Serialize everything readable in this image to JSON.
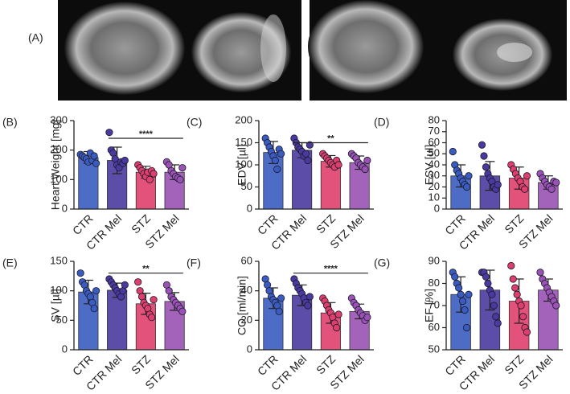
{
  "panel_a_label": "(A)",
  "chart_data": [
    {
      "type": "bar",
      "panel": "(B)",
      "y_label": "Heart Weight [mg]",
      "categories": [
        "CTR",
        "CTR Mel",
        "STZ",
        "STZ Mel"
      ],
      "colors": [
        "#3a5cc0",
        "#4a3aa0",
        "#df3f6c",
        "#9a52b4"
      ],
      "values": [
        175,
        165,
        125,
        125
      ],
      "errors": [
        20,
        45,
        20,
        25
      ],
      "points": [
        [
          185,
          180,
          175,
          170,
          160,
          190,
          165,
          180,
          155
        ],
        [
          260,
          200,
          190,
          170,
          150,
          140,
          160,
          155,
          165
        ],
        [
          150,
          140,
          130,
          120,
          110,
          125,
          100,
          130,
          120
        ],
        [
          160,
          150,
          130,
          120,
          110,
          105,
          100,
          140
        ]
      ],
      "ylim": [
        0,
        300
      ],
      "yticks": [
        0,
        100,
        200,
        300
      ],
      "significance": {
        "label": "****",
        "y": 240,
        "from": "CTR Mel",
        "to": "STZ Mel"
      }
    },
    {
      "type": "bar",
      "panel": "(C)",
      "y_label": "EDV [µl]",
      "categories": [
        "CTR",
        "CTR Mel",
        "STZ",
        "STZ Mel"
      ],
      "colors": [
        "#3a5cc0",
        "#4a3aa0",
        "#df3f6c",
        "#9a52b4"
      ],
      "values": [
        128,
        133,
        108,
        105
      ],
      "errors": [
        25,
        17,
        13,
        15
      ],
      "points": [
        [
          160,
          150,
          140,
          130,
          120,
          110,
          90,
          135,
          125
        ],
        [
          160,
          150,
          140,
          135,
          130,
          120,
          125,
          110,
          145
        ],
        [
          125,
          120,
          115,
          110,
          105,
          100,
          95,
          110,
          100
        ],
        [
          125,
          120,
          115,
          105,
          100,
          95,
          90,
          110
        ]
      ],
      "ylim": [
        0,
        200
      ],
      "yticks": [
        0,
        50,
        100,
        150,
        200
      ],
      "significance": {
        "label": "**",
        "y": 150,
        "from": "CTR Mel",
        "to": "STZ Mel"
      }
    },
    {
      "type": "bar",
      "panel": "(D)",
      "y_label": "ESV [ul]",
      "categories": [
        "CTR",
        "CTR Mel",
        "STZ",
        "STZ Mel"
      ],
      "colors": [
        "#3a5cc0",
        "#4a3aa0",
        "#df3f6c",
        "#9a52b4"
      ],
      "values": [
        30,
        30,
        28,
        24
      ],
      "errors": [
        10,
        13,
        10,
        6
      ],
      "points": [
        [
          52,
          40,
          35,
          32,
          28,
          25,
          22,
          20,
          30
        ],
        [
          58,
          48,
          38,
          32,
          28,
          25,
          20,
          18,
          22
        ],
        [
          40,
          36,
          32,
          28,
          25,
          20,
          18,
          30
        ],
        [
          32,
          28,
          25,
          22,
          20,
          18,
          25,
          24
        ]
      ],
      "ylim": [
        0,
        80
      ],
      "yticks": [
        0,
        10,
        20,
        30,
        40,
        50,
        60,
        70,
        80
      ]
    },
    {
      "type": "bar",
      "panel": "(E)",
      "y_label": "SV [µl]",
      "categories": [
        "CTR",
        "CTR Mel",
        "STZ",
        "STZ Mel"
      ],
      "colors": [
        "#3a5cc0",
        "#4a3aa0",
        "#df3f6c",
        "#9a52b4"
      ],
      "values": [
        98,
        101,
        78,
        82
      ],
      "errors": [
        20,
        12,
        18,
        15
      ],
      "points": [
        [
          130,
          115,
          110,
          100,
          95,
          90,
          80,
          70,
          100
        ],
        [
          120,
          115,
          110,
          105,
          100,
          95,
          90,
          100,
          110
        ],
        [
          115,
          100,
          90,
          80,
          75,
          70,
          60,
          55,
          85
        ],
        [
          110,
          100,
          90,
          85,
          80,
          75,
          70,
          65
        ]
      ],
      "ylim": [
        0,
        150
      ],
      "yticks": [
        0,
        50,
        100,
        150
      ],
      "significance": {
        "label": "**",
        "y": 130,
        "from": "CTR Mel",
        "to": "STZ Mel"
      }
    },
    {
      "type": "bar",
      "panel": "(F)",
      "y_label": "CO [ml/min]",
      "categories": [
        "CTR",
        "CTR Mel",
        "STZ",
        "STZ Mel"
      ],
      "colors": [
        "#3a5cc0",
        "#4a3aa0",
        "#df3f6c",
        "#9a52b4"
      ],
      "values": [
        35,
        37,
        25,
        26
      ],
      "errors": [
        7,
        7,
        7,
        5
      ],
      "points": [
        [
          48,
          44,
          40,
          36,
          34,
          32,
          30,
          26,
          35
        ],
        [
          48,
          45,
          42,
          40,
          38,
          35,
          32,
          30,
          36
        ],
        [
          35,
          33,
          30,
          27,
          25,
          22,
          18,
          15,
          24
        ],
        [
          35,
          32,
          30,
          27,
          25,
          23,
          20,
          22
        ]
      ],
      "ylim": [
        0,
        60
      ],
      "yticks": [
        0,
        20,
        40,
        60
      ],
      "significance": {
        "label": "****",
        "y": 52,
        "from": "CTR Mel",
        "to": "STZ Mel"
      }
    },
    {
      "type": "bar",
      "panel": "(G)",
      "y_label": "EF [%]",
      "categories": [
        "CTR",
        "CTR Mel",
        "STZ",
        "STZ Mel"
      ],
      "colors": [
        "#3a5cc0",
        "#4a3aa0",
        "#df3f6c",
        "#9a52b4"
      ],
      "values": [
        75,
        77,
        72,
        77
      ],
      "errors": [
        8,
        9,
        10,
        5
      ],
      "points": [
        [
          85,
          83,
          80,
          78,
          75,
          72,
          68,
          60,
          75
        ],
        [
          85,
          85,
          83,
          80,
          77,
          75,
          70,
          65,
          62
        ],
        [
          88,
          82,
          78,
          75,
          72,
          70,
          65,
          60,
          58
        ],
        [
          85,
          82,
          80,
          78,
          76,
          74,
          72,
          70
        ]
      ],
      "ylim": [
        50,
        90
      ],
      "yticks": [
        50,
        60,
        70,
        80,
        90
      ]
    }
  ]
}
